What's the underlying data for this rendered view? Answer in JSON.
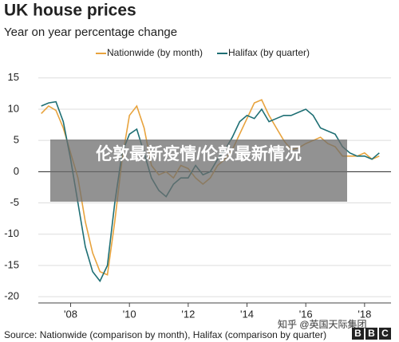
{
  "chart_data": {
    "type": "line",
    "title": "UK house prices",
    "subtitle": "Year on year percentage change",
    "x": [
      2007.0,
      2007.25,
      2007.5,
      2007.75,
      2008.0,
      2008.25,
      2008.5,
      2008.75,
      2009.0,
      2009.25,
      2009.5,
      2009.75,
      2010.0,
      2010.25,
      2010.5,
      2010.75,
      2011.0,
      2011.25,
      2011.5,
      2011.75,
      2012.0,
      2012.25,
      2012.5,
      2012.75,
      2013.0,
      2013.25,
      2013.5,
      2013.75,
      2014.0,
      2014.25,
      2014.5,
      2014.75,
      2015.0,
      2015.25,
      2015.5,
      2015.75,
      2016.0,
      2016.25,
      2016.5,
      2016.75,
      2017.0,
      2017.25,
      2017.5,
      2017.75,
      2018.0,
      2018.25,
      2018.5
    ],
    "series": [
      {
        "name": "Nationwide (by month)",
        "color": "#e8a33d",
        "values": [
          9.3,
          10.5,
          9.8,
          7,
          3,
          -1,
          -8,
          -13,
          -16,
          -16.5,
          -8,
          2,
          9,
          10.5,
          7,
          1,
          -0.5,
          0,
          -1,
          1,
          0.5,
          -1,
          -2,
          -1,
          1,
          2,
          3.5,
          6,
          8.5,
          11,
          11.5,
          9,
          7,
          5,
          3.5,
          3.8,
          4.5,
          5,
          5.5,
          4.5,
          4,
          2.5,
          2.5,
          2.5,
          3,
          2,
          2.5
        ]
      },
      {
        "name": "Halifax (by quarter)",
        "color": "#1e6f74",
        "values": [
          10.5,
          11,
          11.2,
          8,
          2,
          -5,
          -12,
          -16,
          -17.5,
          -15,
          -5,
          3,
          6,
          6.8,
          3,
          -1,
          -3,
          -4,
          -2,
          -1,
          -1,
          1,
          -0.5,
          0,
          2,
          3.5,
          5.5,
          8,
          9,
          8.5,
          10,
          8,
          8.5,
          9,
          9,
          9.5,
          10,
          9,
          7,
          6.5,
          6,
          4,
          3,
          2.5,
          2.5,
          2,
          3
        ]
      }
    ],
    "xlim": [
      2006.9,
      2018.9
    ],
    "xticks": [
      {
        "value": 2008,
        "label": "'08"
      },
      {
        "value": 2010,
        "label": "'10"
      },
      {
        "value": 2012,
        "label": "'12"
      },
      {
        "value": 2014,
        "label": "'14"
      },
      {
        "value": 2016,
        "label": "'16"
      },
      {
        "value": 2018,
        "label": "'18"
      }
    ],
    "ylim": [
      -21,
      16.5
    ],
    "yticks": [
      15,
      10,
      5,
      0,
      -5,
      -10,
      -15,
      -20
    ],
    "grid": true,
    "source": "Source: Nationwide (comparison by month), Halifax (comparison by quarter)"
  },
  "overlay": {
    "text": "伦敦最新疫情/伦敦最新情况"
  },
  "watermark": "知乎 @英国天际集团",
  "logo": [
    "B",
    "B",
    "C"
  ]
}
